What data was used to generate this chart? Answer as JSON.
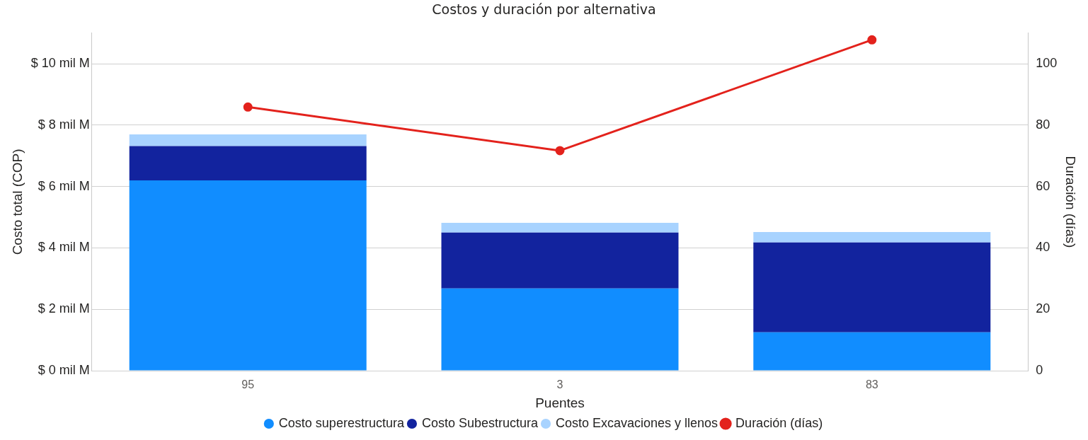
{
  "chart_data": {
    "type": "bar",
    "title": "Costos y duración por alternativa",
    "xlabel": "Puentes",
    "ylabel": "Costo total (COP)",
    "y2label": "Duración (días)",
    "categories": [
      "95",
      "3",
      "83"
    ],
    "stacked": true,
    "series": [
      {
        "name": "Costo superestructura",
        "color": "#118dff",
        "values": [
          6.2,
          2.68,
          1.25
        ]
      },
      {
        "name": "Costo Subestructura",
        "color": "#12239e",
        "values": [
          1.12,
          1.82,
          2.93
        ]
      },
      {
        "name": "Costo Excavaciones y llenos",
        "color": "#a8d3ff",
        "values": [
          0.38,
          0.32,
          0.34
        ]
      },
      {
        "name": "Duración (días)",
        "type": "line",
        "axis": "y2",
        "color": "#e3221c",
        "values": [
          85.9,
          71.7,
          107.8
        ]
      }
    ],
    "ylim": [
      0,
      11
    ],
    "yticks": [
      {
        "value": 0,
        "label": "$ 0 mil M"
      },
      {
        "value": 2,
        "label": "$ 2 mil M"
      },
      {
        "value": 4,
        "label": "$ 4 mil M"
      },
      {
        "value": 6,
        "label": "$ 6 mil M"
      },
      {
        "value": 8,
        "label": "$ 8 mil M"
      },
      {
        "value": 10,
        "label": "$ 10 mil M"
      }
    ],
    "y2lim": [
      0,
      110
    ],
    "y2ticks": [
      0,
      20,
      40,
      60,
      80,
      100
    ],
    "grid": "y",
    "legend": "bottom",
    "marker": "circle"
  }
}
